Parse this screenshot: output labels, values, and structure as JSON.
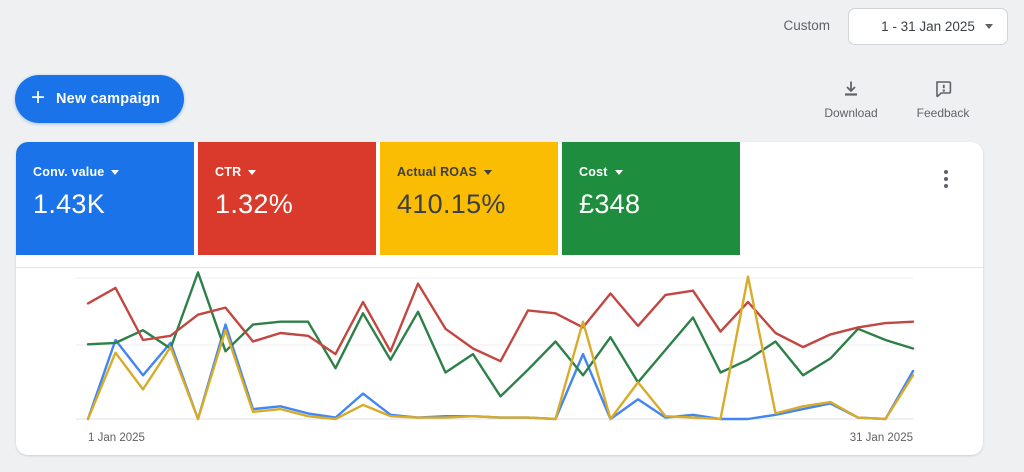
{
  "page": {
    "background": "#eef0f1"
  },
  "header": {
    "custom_label": "Custom",
    "date_range_value": "1 - 31 Jan 2025"
  },
  "toolbar": {
    "new_campaign_label": "New campaign",
    "download_label": "Download",
    "feedback_label": "Feedback"
  },
  "scorecards": [
    {
      "label": "Conv. value",
      "value": "1.43K",
      "bg": "#1a73e8",
      "text": "#ffffff"
    },
    {
      "label": "CTR",
      "value": "1.32%",
      "bg": "#d93a2b",
      "text": "#ffffff"
    },
    {
      "label": "Actual ROAS",
      "value": "410.15%",
      "bg": "#fbbc04",
      "text": "#3c4043"
    },
    {
      "label": "Cost",
      "value": "£348",
      "bg": "#1e8e3e",
      "text": "#ffffff"
    }
  ],
  "chart_data": {
    "type": "line",
    "x_axis": {
      "start_label": "1 Jan 2025",
      "end_label": "31 Jan 2025",
      "days": 31
    },
    "y_axis": {
      "visible": false,
      "scale": "relative: 0 = bottom gridline, 100 = top gridline (no tick labels shown)"
    },
    "grid": true,
    "legend": "none (colors match scorecards)",
    "x": [
      1,
      2,
      3,
      4,
      5,
      6,
      7,
      8,
      9,
      10,
      11,
      12,
      13,
      14,
      15,
      16,
      17,
      18,
      19,
      20,
      21,
      22,
      23,
      24,
      25,
      26,
      27,
      28,
      29,
      30,
      31
    ],
    "series": [
      {
        "name": "Conv. value",
        "color": "#4285f4",
        "values": [
          0,
          56,
          31,
          54,
          0,
          67,
          7,
          9,
          4,
          1,
          18,
          3,
          1,
          2,
          2,
          1,
          1,
          0,
          46,
          0,
          14,
          1,
          3,
          0,
          0,
          3,
          7,
          11,
          1,
          0,
          34
        ]
      },
      {
        "name": "Cost",
        "color": "#2e8049",
        "values": [
          53,
          54,
          63,
          50,
          104,
          48,
          67,
          69,
          69,
          36,
          75,
          42,
          76,
          33,
          46,
          16,
          35,
          55,
          31,
          58,
          26,
          49,
          72,
          33,
          42,
          55,
          31,
          43,
          64,
          56,
          50
        ]
      },
      {
        "name": "CTR",
        "color": "#c24740",
        "values": [
          82,
          93,
          56,
          59,
          74,
          79,
          55,
          61,
          59,
          46,
          83,
          48,
          96,
          64,
          50,
          41,
          77,
          75,
          65,
          89,
          66,
          88,
          91,
          62,
          83,
          61,
          51,
          60,
          65,
          68,
          69
        ]
      },
      {
        "name": "Actual ROAS",
        "color": "#d6ac2a",
        "values": [
          0,
          47,
          21,
          51,
          0,
          63,
          5,
          7,
          2,
          0,
          10,
          2,
          1,
          1,
          2,
          1,
          1,
          0,
          69,
          0,
          26,
          2,
          1,
          0,
          101,
          4,
          9,
          12,
          1,
          0,
          31
        ]
      }
    ]
  }
}
